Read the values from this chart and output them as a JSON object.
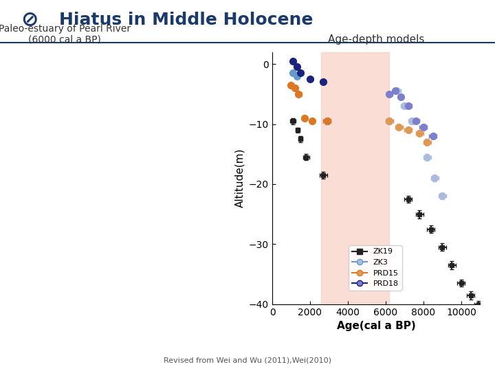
{
  "title": "Hiatus in Middle Holocene",
  "subtitle_left": "Paleo-estuary of Pearl River\n(6000 cal a BP)",
  "subtitle_right": "Age-depth models",
  "xlabel": "Age(cal a BP)",
  "ylabel": "Altitude(m)",
  "xlim": [
    0,
    11000
  ],
  "ylim": [
    -40,
    2
  ],
  "xticks": [
    0,
    2000,
    4000,
    6000,
    8000,
    10000
  ],
  "yticks": [
    0,
    -10,
    -20,
    -30,
    -40
  ],
  "hiatus_xmin": 2600,
  "hiatus_xmax": 6200,
  "hiatus_color": "#f7c8bb",
  "hiatus_alpha": 0.5,
  "bg_color": "#ffffff",
  "title_color": "#1a3a6b",
  "footer": "Revised from Wei and Wu (2011),Wei(2010)",
  "series": {
    "ZK19": {
      "color1": "#222222",
      "color2": "#222222",
      "marker": "s",
      "markersize": 5,
      "lw": 1.5,
      "points": [
        {
          "age": 1100,
          "alt": -9.5,
          "age_err": 150,
          "alt_err": 0.5
        },
        {
          "age": 1350,
          "alt": -11.0,
          "age_err": 100,
          "alt_err": 0.4
        },
        {
          "age": 1500,
          "alt": -12.5,
          "age_err": 100,
          "alt_err": 0.5
        },
        {
          "age": 1800,
          "alt": -15.5,
          "age_err": 150,
          "alt_err": 0.5
        },
        {
          "age": 2700,
          "alt": -18.5,
          "age_err": 200,
          "alt_err": 0.6
        },
        {
          "age": 7200,
          "alt": -22.5,
          "age_err": 200,
          "alt_err": 0.6
        },
        {
          "age": 7800,
          "alt": -25.0,
          "age_err": 200,
          "alt_err": 0.7
        },
        {
          "age": 8400,
          "alt": -27.5,
          "age_err": 200,
          "alt_err": 0.6
        },
        {
          "age": 9000,
          "alt": -30.5,
          "age_err": 200,
          "alt_err": 0.6
        },
        {
          "age": 9500,
          "alt": -33.5,
          "age_err": 200,
          "alt_err": 0.7
        },
        {
          "age": 10000,
          "alt": -36.5,
          "age_err": 200,
          "alt_err": 0.6
        },
        {
          "age": 10500,
          "alt": -38.5,
          "age_err": 200,
          "alt_err": 0.7
        },
        {
          "age": 10900,
          "alt": -40.0,
          "age_err": 200,
          "alt_err": 0.5
        }
      ]
    },
    "ZK3": {
      "color1": "#6699cc",
      "color2": "#aabbdd",
      "marker": "o",
      "markersize": 7,
      "lw": 1.5,
      "points": [
        {
          "age": 1100,
          "alt": -1.5,
          "age_err": 100,
          "alt_err": 0.3,
          "seg": 1
        },
        {
          "age": 1300,
          "alt": -2.0,
          "age_err": 120,
          "alt_err": 0.3,
          "seg": 1
        },
        {
          "age": 2900,
          "alt": -9.5,
          "age_err": 200,
          "alt_err": 0.5,
          "seg": 1
        },
        {
          "age": 6200,
          "alt": -9.5,
          "age_err": 200,
          "alt_err": 0.5,
          "seg": 2
        },
        {
          "age": 6600,
          "alt": -4.5,
          "age_err": 200,
          "alt_err": 0.4,
          "seg": 2
        },
        {
          "age": 7000,
          "alt": -7.0,
          "age_err": 200,
          "alt_err": 0.4,
          "seg": 2
        },
        {
          "age": 7400,
          "alt": -9.5,
          "age_err": 200,
          "alt_err": 0.5,
          "seg": 2
        },
        {
          "age": 8200,
          "alt": -15.5,
          "age_err": 200,
          "alt_err": 0.5,
          "seg": 2
        },
        {
          "age": 8600,
          "alt": -19.0,
          "age_err": 200,
          "alt_err": 0.5,
          "seg": 2
        },
        {
          "age": 9000,
          "alt": -22.0,
          "age_err": 200,
          "alt_err": 0.5,
          "seg": 2
        }
      ]
    },
    "PRD15": {
      "color1": "#dd7722",
      "color2": "#dd9955",
      "marker": "o",
      "markersize": 7,
      "lw": 1.5,
      "points": [
        {
          "age": 1000,
          "alt": -3.5,
          "age_err": 100,
          "alt_err": 0.3,
          "seg": 1
        },
        {
          "age": 1200,
          "alt": -4.0,
          "age_err": 120,
          "alt_err": 0.3,
          "seg": 1
        },
        {
          "age": 1400,
          "alt": -5.0,
          "age_err": 150,
          "alt_err": 0.3,
          "seg": 1
        },
        {
          "age": 1700,
          "alt": -9.0,
          "age_err": 150,
          "alt_err": 0.4,
          "seg": 1
        },
        {
          "age": 2100,
          "alt": -9.5,
          "age_err": 150,
          "alt_err": 0.4,
          "seg": 1
        },
        {
          "age": 2900,
          "alt": -9.5,
          "age_err": 200,
          "alt_err": 0.4,
          "seg": 1
        },
        {
          "age": 6200,
          "alt": -9.5,
          "age_err": 200,
          "alt_err": 0.4,
          "seg": 2
        },
        {
          "age": 6700,
          "alt": -10.5,
          "age_err": 200,
          "alt_err": 0.4,
          "seg": 2
        },
        {
          "age": 7200,
          "alt": -11.0,
          "age_err": 200,
          "alt_err": 0.4,
          "seg": 2
        },
        {
          "age": 7800,
          "alt": -11.5,
          "age_err": 200,
          "alt_err": 0.4,
          "seg": 2
        },
        {
          "age": 8200,
          "alt": -13.0,
          "age_err": 200,
          "alt_err": 0.5,
          "seg": 2
        }
      ]
    },
    "PRD18": {
      "color1": "#1a237e",
      "color2": "#7b7fcc",
      "marker": "o",
      "markersize": 7,
      "lw": 1.5,
      "points": [
        {
          "age": 1100,
          "alt": 0.5,
          "age_err": 120,
          "alt_err": 0.3,
          "seg": 1
        },
        {
          "age": 1300,
          "alt": -0.5,
          "age_err": 120,
          "alt_err": 0.3,
          "seg": 1
        },
        {
          "age": 1500,
          "alt": -1.5,
          "age_err": 120,
          "alt_err": 0.3,
          "seg": 1
        },
        {
          "age": 2000,
          "alt": -2.5,
          "age_err": 150,
          "alt_err": 0.3,
          "seg": 1
        },
        {
          "age": 2700,
          "alt": -3.0,
          "age_err": 150,
          "alt_err": 0.3,
          "seg": 1
        },
        {
          "age": 6200,
          "alt": -5.0,
          "age_err": 150,
          "alt_err": 0.3,
          "seg": 2
        },
        {
          "age": 6500,
          "alt": -4.5,
          "age_err": 150,
          "alt_err": 0.3,
          "seg": 2
        },
        {
          "age": 6800,
          "alt": -5.5,
          "age_err": 150,
          "alt_err": 0.3,
          "seg": 2
        },
        {
          "age": 7200,
          "alt": -7.0,
          "age_err": 200,
          "alt_err": 0.4,
          "seg": 2
        },
        {
          "age": 7600,
          "alt": -9.5,
          "age_err": 200,
          "alt_err": 0.4,
          "seg": 2
        },
        {
          "age": 8000,
          "alt": -10.5,
          "age_err": 200,
          "alt_err": 0.4,
          "seg": 2
        },
        {
          "age": 8500,
          "alt": -12.0,
          "age_err": 200,
          "alt_err": 0.5,
          "seg": 2
        }
      ]
    }
  },
  "legend": {
    "ZK19_dark": "#222222",
    "ZK19_light": "#666666",
    "ZK3_dark": "#6699cc",
    "ZK3_light": "#aabbdd",
    "PRD15_dark": "#dd7722",
    "PRD15_light": "#dd9955",
    "PRD18_dark": "#1a237e",
    "PRD18_light": "#7b7fcc"
  }
}
